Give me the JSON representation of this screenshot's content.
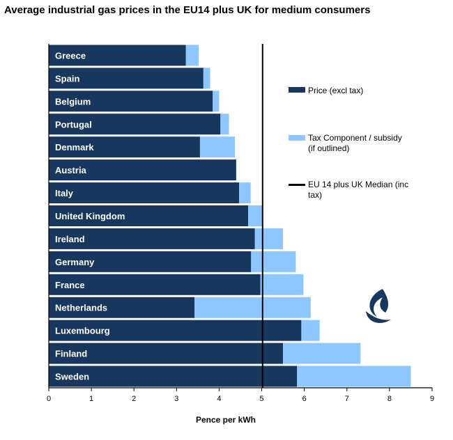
{
  "title": "Average industrial gas prices in the EU14 plus UK for medium consumers",
  "legend": {
    "price": "Price (excl tax)",
    "tax_line1": "Tax Component / subsidy",
    "tax_line2": "(if outlined)",
    "median_line1": "EU 14 plus UK Median (inc",
    "median_line2": "tax)"
  },
  "colors": {
    "price": "#17375e",
    "tax": "#8ec6ff",
    "median": "#000000"
  },
  "logo_icon": "flame-logo-icon",
  "chart_data": {
    "type": "bar",
    "orientation": "horizontal",
    "stacked": true,
    "categories": [
      "Greece",
      "Spain",
      "Belgium",
      "Portugal",
      "Denmark",
      "Austria",
      "Italy",
      "United Kingdom",
      "Ireland",
      "Germany",
      "France",
      "Netherlands",
      "Luxembourg",
      "Finland",
      "Sweden"
    ],
    "series": [
      {
        "name": "Price (excl tax)",
        "values": [
          3.22,
          3.63,
          3.85,
          4.03,
          3.55,
          4.4,
          4.47,
          4.68,
          4.84,
          4.75,
          4.97,
          3.42,
          5.93,
          5.5,
          5.83
        ]
      },
      {
        "name": "Tax Component / subsidy (if outlined)",
        "values": [
          0.3,
          0.16,
          0.15,
          0.2,
          0.82,
          0.0,
          0.27,
          0.34,
          0.66,
          1.05,
          1.01,
          2.73,
          0.43,
          1.82,
          2.67
        ]
      }
    ],
    "median": {
      "name": "EU 14 plus UK Median (inc tax)",
      "value": 5.02
    },
    "xlabel": "Pence per kWh",
    "xlim": [
      0,
      9
    ],
    "xticks": [
      "0",
      "1",
      "2",
      "3",
      "4",
      "5",
      "6",
      "7",
      "8",
      "9"
    ],
    "grid": false,
    "legend_position": "right"
  }
}
